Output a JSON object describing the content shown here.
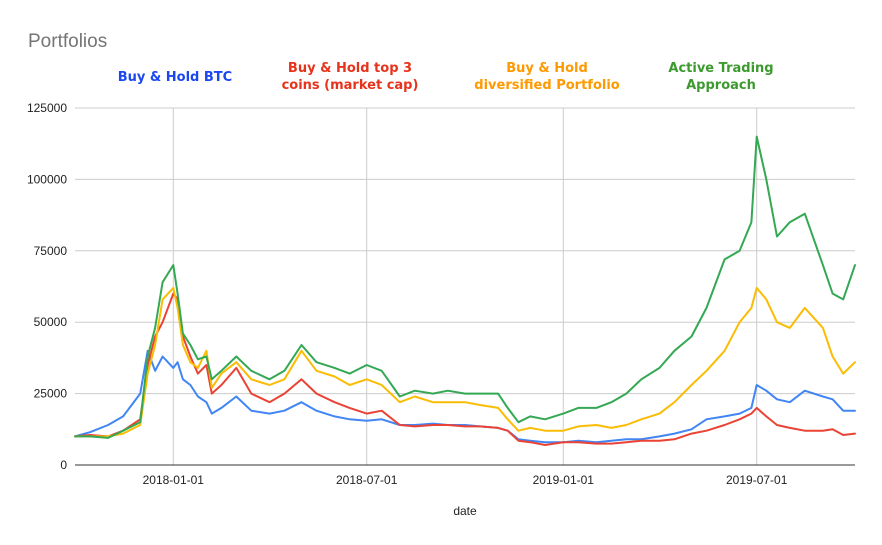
{
  "chart_data": {
    "type": "line",
    "title": "Portfolios",
    "xlabel": "date",
    "ylabel": "",
    "xlim": [
      "2017-10-01",
      "2019-10-01"
    ],
    "ylim": [
      0,
      125000
    ],
    "x_ticks": [
      "2018-01-01",
      "2018-07-01",
      "2019-01-01",
      "2019-07-01"
    ],
    "y_ticks": [
      0,
      25000,
      50000,
      75000,
      100000,
      125000
    ],
    "grid": true,
    "legend": "annotations-top",
    "annotations": [
      {
        "lines": [
          "Buy & Hold BTC"
        ],
        "color": "#1a47f0",
        "series_index": 0
      },
      {
        "lines": [
          "Buy & Hold top 3",
          "coins (market cap)"
        ],
        "color": "#e8331c",
        "series_index": 1
      },
      {
        "lines": [
          "Buy & Hold",
          "diversified Portfolio"
        ],
        "color": "#ff9900",
        "series_index": 2
      },
      {
        "lines": [
          "Active Trading",
          "Approach"
        ],
        "color": "#3c9a2f",
        "series_index": 3
      }
    ],
    "x": [
      "2017-10-01",
      "2017-10-15",
      "2017-11-01",
      "2017-11-15",
      "2017-12-01",
      "2017-12-08",
      "2017-12-15",
      "2017-12-22",
      "2018-01-01",
      "2018-01-05",
      "2018-01-10",
      "2018-01-17",
      "2018-01-24",
      "2018-02-01",
      "2018-02-06",
      "2018-02-15",
      "2018-03-01",
      "2018-03-15",
      "2018-04-01",
      "2018-04-15",
      "2018-05-01",
      "2018-05-15",
      "2018-06-01",
      "2018-06-15",
      "2018-07-01",
      "2018-07-15",
      "2018-08-01",
      "2018-08-15",
      "2018-09-01",
      "2018-09-15",
      "2018-10-01",
      "2018-10-15",
      "2018-11-01",
      "2018-11-10",
      "2018-11-20",
      "2018-12-01",
      "2018-12-15",
      "2019-01-01",
      "2019-01-15",
      "2019-02-01",
      "2019-02-15",
      "2019-03-01",
      "2019-03-15",
      "2019-04-01",
      "2019-04-15",
      "2019-05-01",
      "2019-05-15",
      "2019-06-01",
      "2019-06-15",
      "2019-06-26",
      "2019-07-01",
      "2019-07-10",
      "2019-07-20",
      "2019-08-01",
      "2019-08-15",
      "2019-09-01",
      "2019-09-10",
      "2019-09-20",
      "2019-10-01"
    ],
    "series": [
      {
        "color": "#4285f4",
        "values": [
          10000,
          11500,
          14000,
          17000,
          25000,
          40000,
          33000,
          38000,
          34000,
          36000,
          30000,
          28000,
          24000,
          22000,
          18000,
          20000,
          24000,
          19000,
          18000,
          19000,
          22000,
          19000,
          17000,
          16000,
          15500,
          16000,
          14000,
          14000,
          14500,
          14000,
          14000,
          13500,
          13000,
          12000,
          9000,
          8500,
          8000,
          8000,
          8500,
          8000,
          8500,
          9000,
          9000,
          10000,
          11000,
          12500,
          16000,
          17000,
          18000,
          20000,
          28000,
          26000,
          23000,
          22000,
          26000,
          24000,
          23000,
          19000,
          19000
        ]
      },
      {
        "color": "#ea4335",
        "values": [
          10000,
          10500,
          10000,
          12000,
          16000,
          35000,
          45000,
          50000,
          60000,
          58000,
          45000,
          38000,
          32000,
          35000,
          25000,
          28000,
          34000,
          25000,
          22000,
          25000,
          30000,
          25000,
          22000,
          20000,
          18000,
          19000,
          14000,
          13500,
          14000,
          14000,
          13500,
          13500,
          13000,
          12000,
          8500,
          8000,
          7000,
          8000,
          8000,
          7500,
          7500,
          8000,
          8500,
          8500,
          9000,
          11000,
          12000,
          14000,
          16000,
          18000,
          20000,
          17000,
          14000,
          13000,
          12000,
          12000,
          12500,
          10500,
          11000
        ]
      },
      {
        "color": "#fbbc04",
        "values": [
          10000,
          10000,
          10000,
          11000,
          14000,
          32000,
          42000,
          58000,
          62000,
          55000,
          42000,
          36000,
          34000,
          40000,
          27000,
          32000,
          36000,
          30000,
          28000,
          30000,
          40000,
          33000,
          31000,
          28000,
          30000,
          28000,
          22000,
          24000,
          22000,
          22000,
          22000,
          21000,
          20000,
          16000,
          12000,
          13000,
          12000,
          12000,
          13500,
          14000,
          13000,
          14000,
          16000,
          18000,
          22000,
          28000,
          33000,
          40000,
          50000,
          55000,
          62000,
          58000,
          50000,
          48000,
          55000,
          48000,
          38000,
          32000,
          36000
        ]
      },
      {
        "color": "#34a853",
        "values": [
          10000,
          10000,
          9500,
          12000,
          15000,
          38000,
          48000,
          64000,
          70000,
          60000,
          46000,
          42000,
          37000,
          38000,
          30000,
          33000,
          38000,
          33000,
          30000,
          33000,
          42000,
          36000,
          34000,
          32000,
          35000,
          33000,
          24000,
          26000,
          25000,
          26000,
          25000,
          25000,
          25000,
          20000,
          15000,
          17000,
          16000,
          18000,
          20000,
          20000,
          22000,
          25000,
          30000,
          34000,
          40000,
          45000,
          55000,
          72000,
          75000,
          85000,
          115000,
          100000,
          80000,
          85000,
          88000,
          70000,
          60000,
          58000,
          70000
        ]
      }
    ]
  }
}
